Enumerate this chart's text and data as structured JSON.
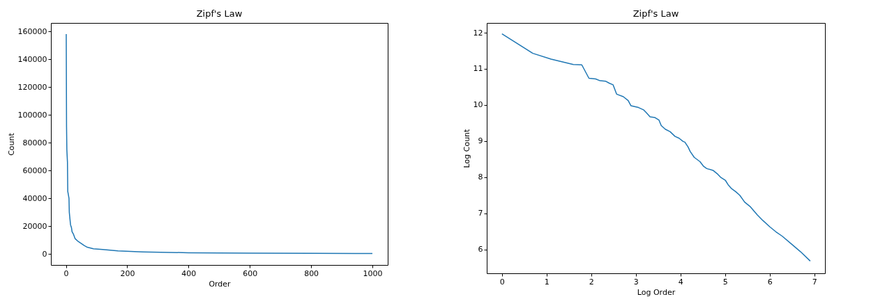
{
  "chart_data": [
    {
      "type": "line",
      "title": "Zipf's Law",
      "xlabel": "Order",
      "ylabel": "Count",
      "color": "#1f77b4",
      "x": [
        1,
        2,
        3,
        5,
        6,
        10,
        11,
        15,
        18,
        20,
        25,
        30,
        40,
        50,
        60,
        70,
        90,
        120,
        170,
        250,
        400,
        600,
        800,
        1000
      ],
      "values": [
        158000,
        92000,
        75000,
        66000,
        45000,
        40000,
        30000,
        21000,
        19000,
        16000,
        14000,
        11000,
        9000,
        7500,
        6000,
        4800,
        3700,
        3200,
        2200,
        1500,
        900,
        600,
        450,
        290
      ],
      "xlim": [
        -49,
        1050
      ],
      "ylim": [
        -7900,
        166000
      ],
      "xticks": [
        0,
        200,
        400,
        600,
        800,
        1000
      ],
      "yticks": [
        0,
        20000,
        40000,
        60000,
        80000,
        100000,
        120000,
        140000,
        160000
      ]
    },
    {
      "type": "line",
      "title": "Zipf's Law",
      "xlabel": "Log Order",
      "ylabel": "Log Count",
      "color": "#1f77b4",
      "x": [
        0,
        0.69,
        1.1,
        1.6,
        1.79,
        1.95,
        2.1,
        2.2,
        2.32,
        2.41,
        2.49,
        2.57,
        2.72,
        2.83,
        2.89,
        3.06,
        3.18,
        3.24,
        3.32,
        3.43,
        3.52,
        3.57,
        3.66,
        3.77,
        3.88,
        3.97,
        4.06,
        4.1,
        4.17,
        4.22,
        4.31,
        4.44,
        4.52,
        4.59,
        4.73,
        4.84,
        4.9,
        5.01,
        5.07,
        5.15,
        5.24,
        5.33,
        5.44,
        5.57,
        5.72,
        5.85,
        6.01,
        6.14,
        6.28,
        6.48,
        6.69,
        6.91
      ],
      "values": [
        11.97,
        11.43,
        11.27,
        11.12,
        11.11,
        10.74,
        10.72,
        10.67,
        10.66,
        10.6,
        10.56,
        10.3,
        10.23,
        10.12,
        9.98,
        9.93,
        9.86,
        9.78,
        9.67,
        9.65,
        9.58,
        9.43,
        9.33,
        9.26,
        9.13,
        9.08,
        8.99,
        8.97,
        8.84,
        8.71,
        8.55,
        8.43,
        8.3,
        8.24,
        8.19,
        8.08,
        8.0,
        7.91,
        7.79,
        7.68,
        7.6,
        7.5,
        7.31,
        7.18,
        6.96,
        6.8,
        6.62,
        6.49,
        6.37,
        6.16,
        5.94,
        5.68
      ],
      "xlim": [
        -0.34,
        7.24
      ],
      "ylim": [
        5.34,
        12.27
      ],
      "xticks": [
        0,
        1,
        2,
        3,
        4,
        5,
        6,
        7
      ],
      "yticks": [
        6,
        7,
        8,
        9,
        10,
        11,
        12
      ]
    }
  ]
}
